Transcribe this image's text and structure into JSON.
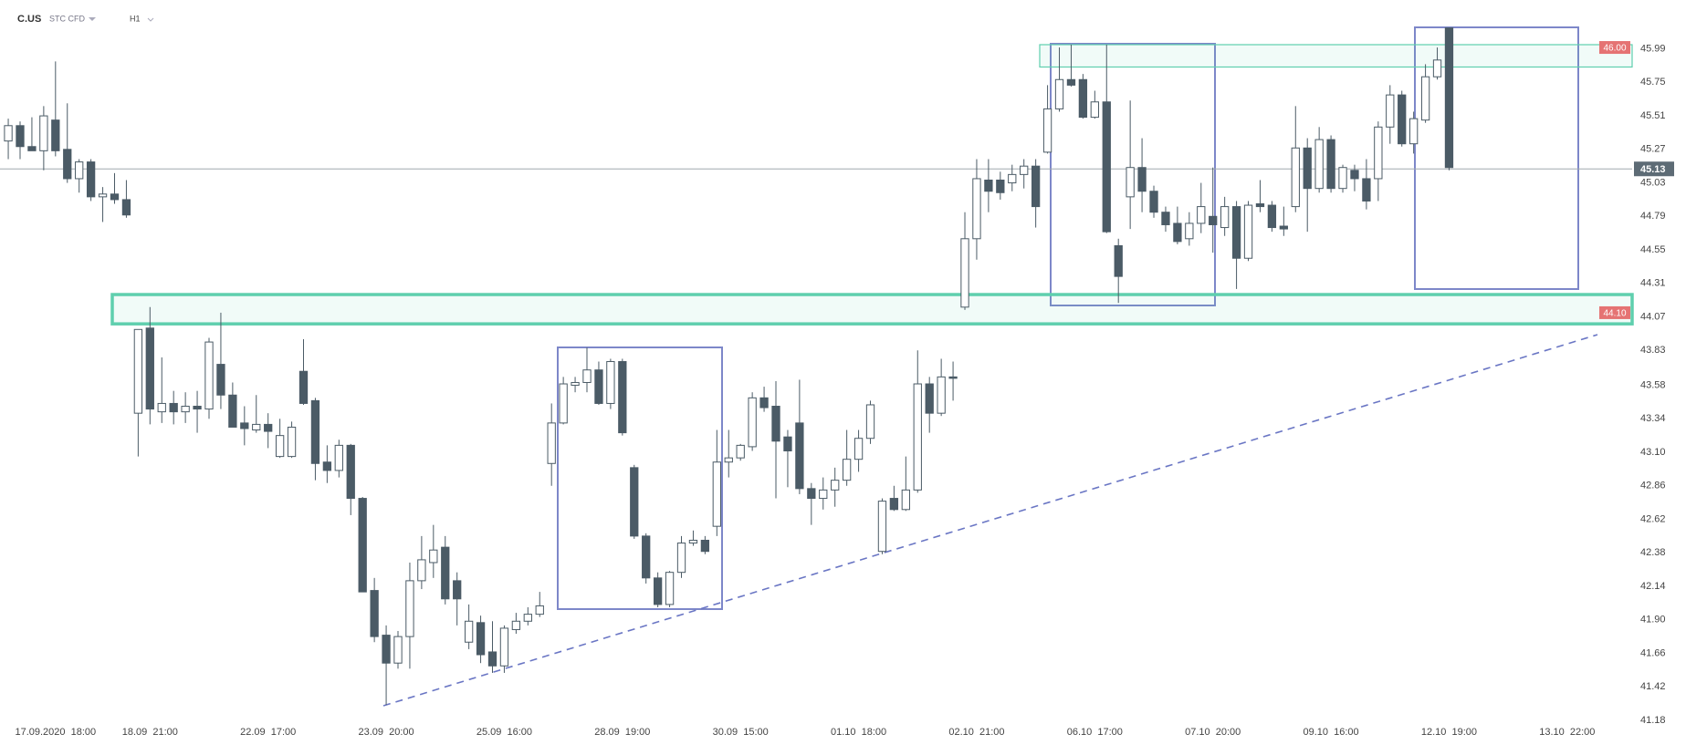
{
  "header": {
    "symbol": "C.US",
    "market": "STC CFD",
    "interval": "H1"
  },
  "chart_data": {
    "type": "candlestick",
    "up_color": "#ffffff",
    "down_color": "#4b5b66",
    "outline_color": "#4b5b66",
    "ylim": [
      41.01,
      46.34
    ],
    "yticks": [
      45.99,
      45.75,
      45.51,
      45.27,
      45.03,
      44.79,
      44.55,
      44.31,
      44.07,
      43.83,
      43.58,
      43.34,
      {
        "value": 43.1,
        "label": "43.10"
      },
      42.86,
      42.62,
      42.38,
      42.14,
      {
        "value": 41.9,
        "label": "41.90"
      },
      41.66,
      41.42,
      41.18
    ],
    "xlim": [
      -0.7,
      137.5
    ],
    "xticks": [
      {
        "value": 4,
        "label": "17.09.2020  18:00"
      },
      {
        "value": 12,
        "label": "18.09  21:00"
      },
      {
        "value": 22,
        "label": "22.09  17:00"
      },
      {
        "value": 32,
        "label": "23.09  20:00"
      },
      {
        "value": 42,
        "label": "25.09  16:00"
      },
      {
        "value": 52,
        "label": "28.09  19:00"
      },
      {
        "value": 62,
        "label": "30.09  15:00"
      },
      {
        "value": 72,
        "label": "01.10  18:00"
      },
      {
        "value": 82,
        "label": "02.10  21:00"
      },
      {
        "value": 92,
        "label": "06.10  17:00"
      },
      {
        "value": 102,
        "label": "07.10  20:00"
      },
      {
        "value": 112,
        "label": "09.10  16:00"
      },
      {
        "value": 122,
        "label": "12.10  19:00"
      },
      {
        "value": 132,
        "label": "13.10  22:00"
      }
    ],
    "open": [
      45.33,
      45.44,
      45.29,
      45.26,
      45.48,
      45.27,
      45.06,
      45.18,
      44.93,
      44.95,
      44.91,
      43.38,
      43.99,
      43.39,
      43.45,
      43.39,
      43.43,
      43.41,
      43.73,
      43.51,
      43.31,
      43.26,
      43.3,
      43.07,
      43.07,
      43.68,
      43.47,
      43.03,
      42.97,
      43.15,
      42.77,
      42.11,
      41.79,
      41.59,
      41.78,
      42.18,
      42.31,
      42.42,
      42.18,
      41.74,
      41.88,
      41.67,
      41.57,
      41.83,
      41.89,
      41.94,
      43.02,
      43.31,
      43.58,
      43.6,
      43.69,
      43.45,
      43.75,
      42.99,
      42.5,
      42.2,
      42.01,
      42.24,
      42.45,
      42.47,
      42.57,
      43.03,
      43.06,
      43.14,
      43.49,
      43.43,
      43.21,
      43.31,
      42.84,
      42.77,
      42.83,
      42.9,
      43.05,
      43.2,
      42.39,
      42.77,
      42.69,
      42.83,
      43.59,
      43.38,
      43.64,
      44.14,
      44.63,
      45.05,
      45.05,
      45.03,
      45.09,
      45.15,
      45.25,
      45.56,
      45.77,
      45.77,
      45.5,
      45.61,
      44.58,
      44.93,
      45.14,
      44.97,
      44.82,
      44.74,
      44.63,
      44.74,
      44.79,
      44.71,
      44.86,
      44.49,
      44.88,
      44.87,
      44.72,
      44.86,
      45.28,
      44.99,
      45.34,
      44.99,
      45.12,
      45.06,
      45.06,
      45.43,
      45.66,
      45.31,
      45.48,
      45.79,
      46.14
    ],
    "high": [
      45.49,
      45.47,
      45.5,
      45.58,
      45.9,
      45.6,
      45.2,
      45.2,
      45.0,
      45.1,
      45.05,
      43.98,
      44.14,
      43.78,
      43.54,
      43.53,
      43.54,
      43.92,
      44.1,
      43.6,
      43.43,
      43.51,
      43.38,
      43.34,
      43.32,
      43.91,
      43.49,
      43.15,
      43.19,
      43.16,
      42.78,
      42.2,
      41.86,
      41.82,
      42.31,
      42.5,
      42.58,
      42.5,
      42.24,
      42.01,
      41.93,
      41.89,
      41.86,
      41.95,
      41.99,
      42.1,
      43.45,
      43.64,
      43.64,
      43.85,
      43.75,
      43.77,
      43.77,
      43.01,
      42.52,
      42.24,
      42.25,
      42.5,
      42.54,
      42.5,
      43.26,
      43.26,
      43.16,
      43.53,
      43.57,
      43.61,
      43.26,
      43.62,
      42.88,
      42.92,
      42.99,
      43.26,
      43.26,
      43.47,
      42.77,
      42.86,
      43.07,
      43.83,
      43.64,
      43.77,
      43.75,
      44.82,
      45.2,
      45.2,
      45.11,
      45.16,
      45.2,
      45.2,
      45.73,
      46.0,
      46.02,
      45.81,
      45.69,
      46.02,
      44.63,
      45.62,
      45.35,
      45.01,
      44.86,
      44.86,
      44.82,
      45.03,
      45.14,
      44.93,
      44.9,
      44.9,
      45.05,
      44.9,
      44.86,
      45.58,
      45.35,
      45.43,
      45.37,
      45.16,
      45.16,
      45.2,
      45.47,
      45.73,
      45.69,
      45.54,
      45.88,
      46.0,
      46.14
    ],
    "low": [
      45.2,
      45.2,
      45.26,
      45.12,
      45.22,
      45.03,
      44.96,
      44.9,
      44.75,
      44.88,
      44.78,
      43.07,
      43.3,
      43.31,
      43.3,
      43.31,
      43.24,
      43.34,
      43.41,
      43.28,
      43.15,
      43.24,
      43.13,
      43.06,
      43.06,
      43.44,
      42.9,
      42.88,
      42.92,
      42.65,
      42.1,
      41.74,
      41.29,
      41.55,
      41.55,
      42.12,
      42.2,
      42.01,
      41.86,
      41.69,
      41.59,
      41.52,
      41.52,
      41.8,
      41.86,
      41.92,
      42.86,
      43.3,
      43.53,
      43.53,
      43.44,
      43.41,
      43.22,
      42.48,
      42.16,
      41.99,
      41.99,
      42.2,
      42.43,
      42.37,
      42.5,
      42.92,
      43.04,
      43.11,
      43.39,
      42.77,
      42.85,
      42.8,
      42.58,
      42.69,
      42.71,
      42.86,
      42.96,
      43.16,
      42.37,
      42.68,
      42.68,
      42.81,
      43.24,
      43.36,
      43.47,
      44.12,
      44.48,
      44.82,
      44.91,
      44.97,
      44.99,
      44.71,
      45.24,
      45.54,
      45.72,
      45.49,
      45.49,
      44.67,
      44.17,
      44.7,
      44.82,
      44.78,
      44.68,
      44.59,
      44.58,
      44.67,
      44.53,
      44.65,
      44.27,
      44.47,
      44.82,
      44.68,
      44.65,
      44.82,
      44.68,
      44.96,
      44.96,
      44.96,
      44.97,
      44.84,
      44.9,
      45.31,
      45.29,
      45.24,
      45.46,
      45.77,
      45.12
    ],
    "close": [
      45.44,
      45.29,
      45.26,
      45.51,
      45.26,
      45.06,
      45.18,
      44.93,
      44.95,
      44.91,
      44.8,
      43.98,
      43.41,
      43.45,
      43.39,
      43.43,
      43.41,
      43.89,
      43.51,
      43.28,
      43.27,
      43.3,
      43.25,
      43.22,
      43.28,
      43.45,
      43.02,
      42.97,
      43.15,
      42.77,
      42.1,
      41.78,
      41.59,
      41.78,
      42.18,
      42.33,
      42.4,
      42.05,
      42.05,
      41.89,
      41.65,
      41.57,
      41.84,
      41.89,
      41.94,
      42.0,
      43.31,
      43.59,
      43.6,
      43.69,
      43.45,
      43.75,
      43.24,
      42.5,
      42.2,
      42.01,
      42.24,
      42.45,
      42.47,
      42.39,
      43.03,
      43.06,
      43.15,
      43.49,
      43.42,
      43.18,
      43.11,
      42.84,
      42.77,
      42.83,
      42.9,
      43.05,
      43.2,
      43.44,
      42.75,
      42.69,
      42.83,
      43.59,
      43.38,
      43.64,
      43.63,
      44.63,
      45.06,
      44.97,
      44.96,
      45.09,
      45.15,
      44.86,
      45.56,
      45.77,
      45.73,
      45.5,
      45.61,
      44.68,
      44.36,
      45.14,
      44.97,
      44.82,
      44.73,
      44.61,
      44.74,
      44.86,
      44.73,
      44.86,
      44.49,
      44.87,
      44.86,
      44.71,
      44.7,
      45.28,
      44.99,
      45.34,
      44.99,
      45.14,
      45.06,
      44.9,
      45.43,
      45.66,
      45.31,
      45.49,
      45.79,
      45.91,
      45.14
    ],
    "last_price": {
      "value": 45.13,
      "color": "#5d6b75"
    },
    "levels": [
      {
        "value": 46,
        "label": "46.00",
        "zone": [
          45.86,
          46.02
        ],
        "color": "#e57373"
      },
      {
        "value": 44.1,
        "label": "44.10",
        "zone": [
          44.02,
          44.23
        ],
        "color": "#e57373"
      }
    ]
  }
}
